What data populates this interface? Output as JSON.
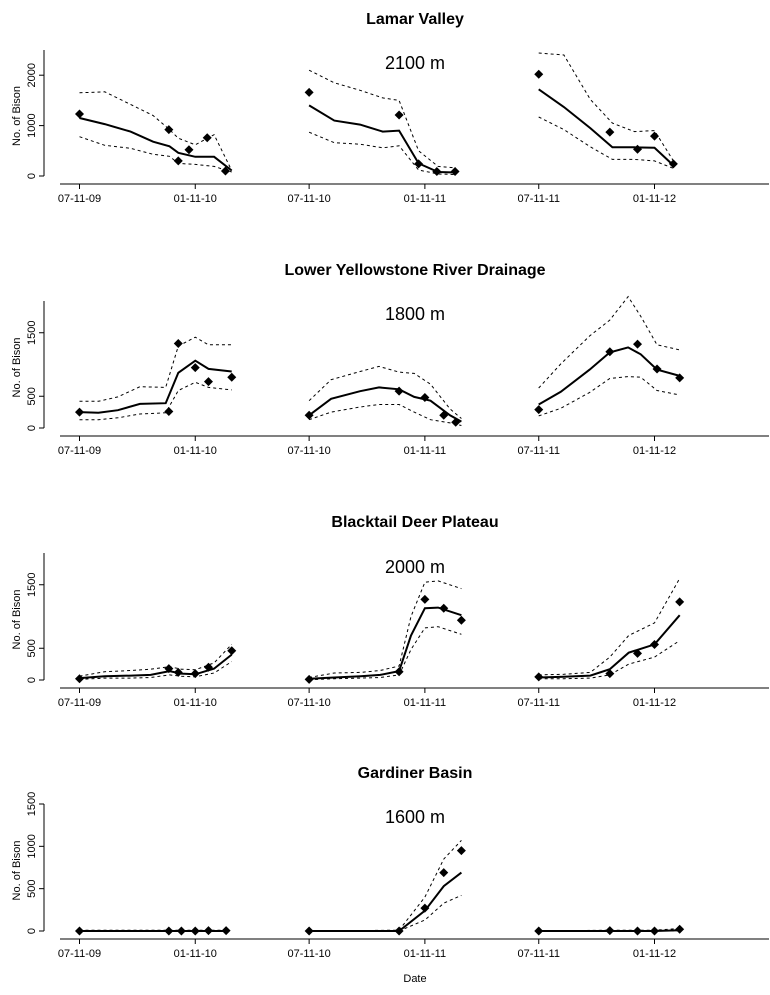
{
  "figure": {
    "xlabel": "Date",
    "x_ticks": [
      "07-11-09",
      "01-11-10",
      "07-11-10",
      "01-11-11",
      "07-11-11",
      "01-11-12"
    ],
    "ylabel": "No. of Bison"
  },
  "chart_data": [
    {
      "type": "line",
      "title": "Lamar Valley",
      "annotation": "2100 m",
      "ylabel": "No. of Bison",
      "xlabel": "",
      "x_ticks": [
        "07-11-09",
        "01-11-10",
        "07-11-10",
        "01-11-11",
        "07-11-11",
        "01-11-12"
      ],
      "ylim": [
        0,
        2500
      ],
      "y_ticks": [
        0,
        1000,
        2000
      ],
      "segments": [
        {
          "x": [
            "2009-07-11",
            "2009-08-20",
            "2009-09-30",
            "2009-11-05",
            "2009-12-01",
            "2009-12-15",
            "2010-01-11",
            "2010-02-10",
            "2010-03-10"
          ],
          "model": [
            1150,
            1030,
            880,
            680,
            590,
            460,
            380,
            380,
            110
          ],
          "upper": [
            1650,
            1670,
            1420,
            1200,
            920,
            750,
            620,
            820,
            110
          ],
          "lower": [
            780,
            610,
            550,
            430,
            390,
            250,
            230,
            190,
            80
          ]
        },
        {
          "x": [
            "2010-07-11",
            "2010-08-20",
            "2010-09-30",
            "2010-11-05",
            "2010-12-01",
            "2011-01-01",
            "2011-02-01",
            "2011-03-01"
          ],
          "model": [
            1400,
            1100,
            1020,
            880,
            900,
            250,
            80,
            70
          ],
          "upper": [
            2100,
            1850,
            1700,
            1550,
            1500,
            500,
            190,
            160
          ],
          "lower": [
            870,
            660,
            630,
            560,
            600,
            120,
            40,
            30
          ]
        },
        {
          "x": [
            "2011-07-11",
            "2011-08-20",
            "2011-10-01",
            "2011-11-05",
            "2011-12-10",
            "2012-01-11",
            "2012-02-10"
          ],
          "model": [
            1720,
            1370,
            950,
            570,
            570,
            560,
            210
          ],
          "upper": [
            2440,
            2400,
            1520,
            1050,
            880,
            900,
            300
          ],
          "lower": [
            1170,
            920,
            580,
            330,
            330,
            300,
            150
          ]
        }
      ],
      "observed": [
        {
          "x": "2009-07-11",
          "y": 1230
        },
        {
          "x": "2009-11-30",
          "y": 920
        },
        {
          "x": "2009-12-15",
          "y": 300
        },
        {
          "x": "2010-01-01",
          "y": 520
        },
        {
          "x": "2010-01-30",
          "y": 760
        },
        {
          "x": "2010-02-28",
          "y": 100
        },
        {
          "x": "2010-07-11",
          "y": 1660
        },
        {
          "x": "2010-12-01",
          "y": 1210
        },
        {
          "x": "2011-01-01",
          "y": 240
        },
        {
          "x": "2011-01-30",
          "y": 90
        },
        {
          "x": "2011-02-28",
          "y": 90
        },
        {
          "x": "2011-07-11",
          "y": 2020
        },
        {
          "x": "2011-11-01",
          "y": 870
        },
        {
          "x": "2011-12-15",
          "y": 530
        },
        {
          "x": "2012-01-11",
          "y": 790
        },
        {
          "x": "2012-02-10",
          "y": 240
        }
      ]
    },
    {
      "type": "line",
      "title": "Lower Yellowstone River Drainage",
      "annotation": "1800 m",
      "ylabel": "No. of Bison",
      "xlabel": "",
      "x_ticks": [
        "07-11-09",
        "01-11-10",
        "07-11-10",
        "01-11-11",
        "07-11-11",
        "01-11-12"
      ],
      "ylim": [
        0,
        2000
      ],
      "y_ticks": [
        0,
        500,
        1500
      ],
      "segments": [
        {
          "x": [
            "2009-07-11",
            "2009-08-10",
            "2009-09-10",
            "2009-10-15",
            "2009-11-25",
            "2009-12-15",
            "2010-01-11",
            "2010-02-01",
            "2010-03-10"
          ],
          "model": [
            250,
            240,
            280,
            380,
            390,
            870,
            1060,
            930,
            890
          ],
          "upper": [
            420,
            420,
            490,
            650,
            640,
            1290,
            1430,
            1310,
            1310
          ],
          "lower": [
            130,
            130,
            160,
            220,
            240,
            590,
            720,
            640,
            600
          ]
        },
        {
          "x": [
            "2010-07-11",
            "2010-08-15",
            "2010-09-30",
            "2010-10-30",
            "2010-12-01",
            "2010-12-25",
            "2011-01-20",
            "2011-02-20",
            "2011-03-10"
          ],
          "model": [
            200,
            460,
            580,
            640,
            610,
            490,
            430,
            200,
            100
          ],
          "upper": [
            430,
            760,
            890,
            970,
            880,
            860,
            690,
            300,
            150
          ],
          "lower": [
            130,
            250,
            330,
            370,
            370,
            250,
            130,
            80,
            40
          ]
        },
        {
          "x": [
            "2011-07-11",
            "2011-08-15",
            "2011-09-30",
            "2011-11-01",
            "2011-11-30",
            "2011-12-20",
            "2012-01-15",
            "2012-02-20"
          ],
          "model": [
            370,
            570,
            920,
            1190,
            1270,
            1160,
            920,
            820
          ],
          "upper": [
            630,
            1010,
            1450,
            1700,
            2070,
            1760,
            1310,
            1230
          ],
          "lower": [
            190,
            310,
            560,
            780,
            810,
            800,
            590,
            520
          ]
        }
      ],
      "observed": [
        {
          "x": "2009-07-11",
          "y": 250
        },
        {
          "x": "2009-11-30",
          "y": 260
        },
        {
          "x": "2009-12-15",
          "y": 1330
        },
        {
          "x": "2010-01-11",
          "y": 950
        },
        {
          "x": "2010-02-01",
          "y": 730
        },
        {
          "x": "2010-03-10",
          "y": 800
        },
        {
          "x": "2010-07-11",
          "y": 200
        },
        {
          "x": "2010-12-01",
          "y": 580
        },
        {
          "x": "2011-01-11",
          "y": 480
        },
        {
          "x": "2011-02-10",
          "y": 200
        },
        {
          "x": "2011-03-01",
          "y": 90
        },
        {
          "x": "2011-07-11",
          "y": 290
        },
        {
          "x": "2011-11-01",
          "y": 1200
        },
        {
          "x": "2011-12-15",
          "y": 1320
        },
        {
          "x": "2012-01-15",
          "y": 930
        },
        {
          "x": "2012-02-20",
          "y": 790
        }
      ]
    },
    {
      "type": "line",
      "title": "Blacktail Deer Plateau",
      "annotation": "2000 m",
      "ylabel": "No. of Bison",
      "xlabel": "",
      "x_ticks": [
        "07-11-09",
        "01-11-10",
        "07-11-10",
        "01-11-11",
        "07-11-11",
        "01-11-12"
      ],
      "ylim": [
        0,
        2000
      ],
      "y_ticks": [
        0,
        500,
        1500
      ],
      "segments": [
        {
          "x": [
            "2009-07-11",
            "2009-08-20",
            "2009-10-01",
            "2009-11-01",
            "2009-12-01",
            "2009-12-20",
            "2010-01-11",
            "2010-02-10",
            "2010-03-10"
          ],
          "model": [
            30,
            60,
            70,
            80,
            140,
            100,
            90,
            180,
            400
          ],
          "upper": [
            60,
            130,
            150,
            170,
            210,
            170,
            160,
            270,
            560
          ],
          "lower": [
            10,
            30,
            30,
            40,
            80,
            60,
            50,
            110,
            290
          ]
        },
        {
          "x": [
            "2010-07-11",
            "2010-08-20",
            "2010-10-01",
            "2010-11-01",
            "2010-12-01",
            "2010-12-20",
            "2011-01-11",
            "2011-02-01",
            "2011-03-10"
          ],
          "model": [
            20,
            40,
            60,
            80,
            140,
            700,
            1130,
            1140,
            1020
          ],
          "upper": [
            40,
            110,
            120,
            150,
            220,
            1000,
            1540,
            1560,
            1440
          ],
          "lower": [
            5,
            20,
            30,
            40,
            80,
            480,
            820,
            840,
            720
          ]
        },
        {
          "x": [
            "2011-07-11",
            "2011-08-20",
            "2011-10-01",
            "2011-11-01",
            "2011-12-01",
            "2012-01-11",
            "2012-02-20"
          ],
          "model": [
            40,
            50,
            70,
            170,
            430,
            560,
            1020
          ],
          "upper": [
            80,
            90,
            120,
            360,
            700,
            900,
            1600
          ],
          "lower": [
            20,
            20,
            30,
            80,
            250,
            360,
            620
          ]
        }
      ],
      "observed": [
        {
          "x": "2009-07-11",
          "y": 20
        },
        {
          "x": "2009-11-30",
          "y": 180
        },
        {
          "x": "2009-12-15",
          "y": 120
        },
        {
          "x": "2010-01-11",
          "y": 100
        },
        {
          "x": "2010-02-01",
          "y": 200
        },
        {
          "x": "2010-03-10",
          "y": 460
        },
        {
          "x": "2010-07-11",
          "y": 10
        },
        {
          "x": "2010-12-01",
          "y": 130
        },
        {
          "x": "2011-01-11",
          "y": 1270
        },
        {
          "x": "2011-02-10",
          "y": 1130
        },
        {
          "x": "2011-03-10",
          "y": 940
        },
        {
          "x": "2011-07-11",
          "y": 50
        },
        {
          "x": "2011-11-01",
          "y": 100
        },
        {
          "x": "2011-12-15",
          "y": 420
        },
        {
          "x": "2012-01-11",
          "y": 560
        },
        {
          "x": "2012-02-20",
          "y": 1230
        }
      ]
    },
    {
      "type": "line",
      "title": "Gardiner Basin",
      "annotation": "1600 m",
      "ylabel": "No. of Bison",
      "xlabel": "Date",
      "x_ticks": [
        "07-11-09",
        "01-11-10",
        "07-11-10",
        "01-11-11",
        "07-11-11",
        "01-11-12"
      ],
      "ylim": [
        0,
        1500
      ],
      "y_ticks": [
        0,
        500,
        1000,
        1500
      ],
      "segments": [
        {
          "x": [
            "2009-07-11",
            "2009-11-30",
            "2009-12-20",
            "2010-01-11",
            "2010-02-01",
            "2010-03-01"
          ],
          "model": [
            0,
            0,
            0,
            0,
            0,
            0
          ],
          "upper": [
            10,
            10,
            10,
            10,
            10,
            10
          ],
          "lower": [
            0,
            0,
            0,
            0,
            0,
            0
          ]
        },
        {
          "x": [
            "2010-07-11",
            "2010-12-01",
            "2011-01-11",
            "2011-02-10",
            "2011-03-10"
          ],
          "model": [
            0,
            0,
            240,
            530,
            690
          ],
          "upper": [
            0,
            10,
            400,
            850,
            1070
          ],
          "lower": [
            0,
            0,
            130,
            330,
            420
          ]
        },
        {
          "x": [
            "2011-07-11",
            "2011-11-01",
            "2011-12-15",
            "2012-01-11",
            "2012-02-20"
          ],
          "model": [
            0,
            0,
            0,
            0,
            10
          ],
          "upper": [
            0,
            10,
            10,
            10,
            30
          ],
          "lower": [
            0,
            0,
            0,
            0,
            0
          ]
        }
      ],
      "observed": [
        {
          "x": "2009-07-11",
          "y": 0
        },
        {
          "x": "2009-11-30",
          "y": 0
        },
        {
          "x": "2009-12-20",
          "y": 0
        },
        {
          "x": "2010-01-11",
          "y": 0
        },
        {
          "x": "2010-02-01",
          "y": 5
        },
        {
          "x": "2010-03-01",
          "y": 5
        },
        {
          "x": "2010-07-11",
          "y": 0
        },
        {
          "x": "2010-12-01",
          "y": 0
        },
        {
          "x": "2011-01-11",
          "y": 270
        },
        {
          "x": "2011-02-10",
          "y": 690
        },
        {
          "x": "2011-03-10",
          "y": 950
        },
        {
          "x": "2011-07-11",
          "y": 0
        },
        {
          "x": "2011-11-01",
          "y": 5
        },
        {
          "x": "2011-12-15",
          "y": 0
        },
        {
          "x": "2012-01-11",
          "y": 0
        },
        {
          "x": "2012-02-20",
          "y": 20
        }
      ]
    }
  ]
}
